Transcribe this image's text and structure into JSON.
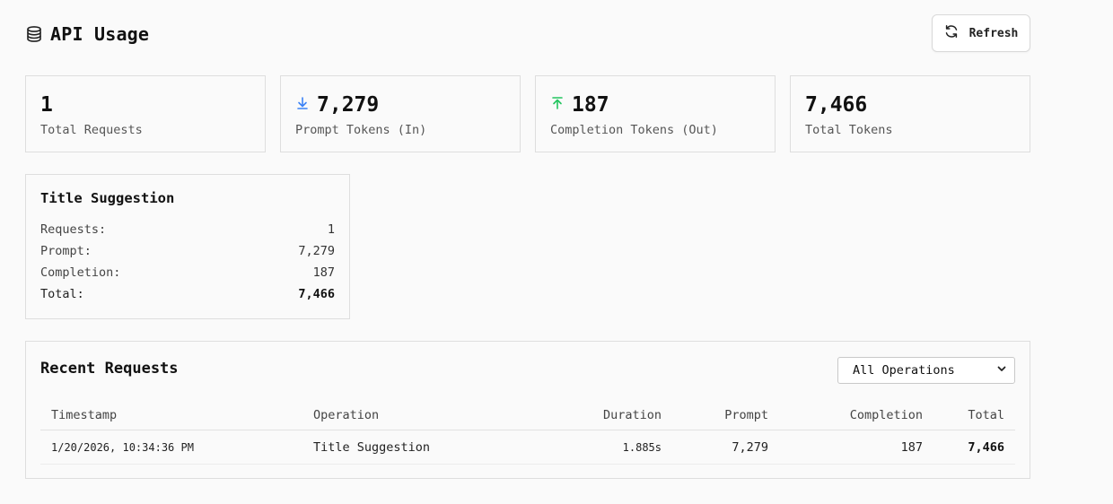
{
  "header": {
    "title": "API Usage",
    "title_icon": "database-icon",
    "refresh_label": "Refresh",
    "refresh_icon": "refresh-icon"
  },
  "stats": [
    {
      "value": "1",
      "label": "Total Requests",
      "icon": null
    },
    {
      "value": "7,279",
      "label": "Prompt Tokens (In)",
      "icon": "arrow-down-icon",
      "icon_color": "#3b82f6"
    },
    {
      "value": "187",
      "label": "Completion Tokens (Out)",
      "icon": "arrow-up-icon",
      "icon_color": "#22c55e"
    },
    {
      "value": "7,466",
      "label": "Total Tokens",
      "icon": null
    }
  ],
  "operation_card": {
    "title": "Title Suggestion",
    "rows": [
      {
        "label": "Requests:",
        "value": "1"
      },
      {
        "label": "Prompt:",
        "value": "7,279"
      },
      {
        "label": "Completion:",
        "value": "187"
      },
      {
        "label": "Total:",
        "value": "7,466"
      }
    ]
  },
  "recent": {
    "title": "Recent Requests",
    "filter": {
      "selected": "All Operations",
      "icon": "chevron-down-icon"
    },
    "columns": [
      "Timestamp",
      "Operation",
      "Duration",
      "Prompt",
      "Completion",
      "Total"
    ],
    "rows": [
      {
        "timestamp": "1/20/2026, 10:34:36 PM",
        "operation": "Title Suggestion",
        "duration": "1.885s",
        "prompt": "7,279",
        "completion": "187",
        "total": "7,466"
      }
    ]
  }
}
